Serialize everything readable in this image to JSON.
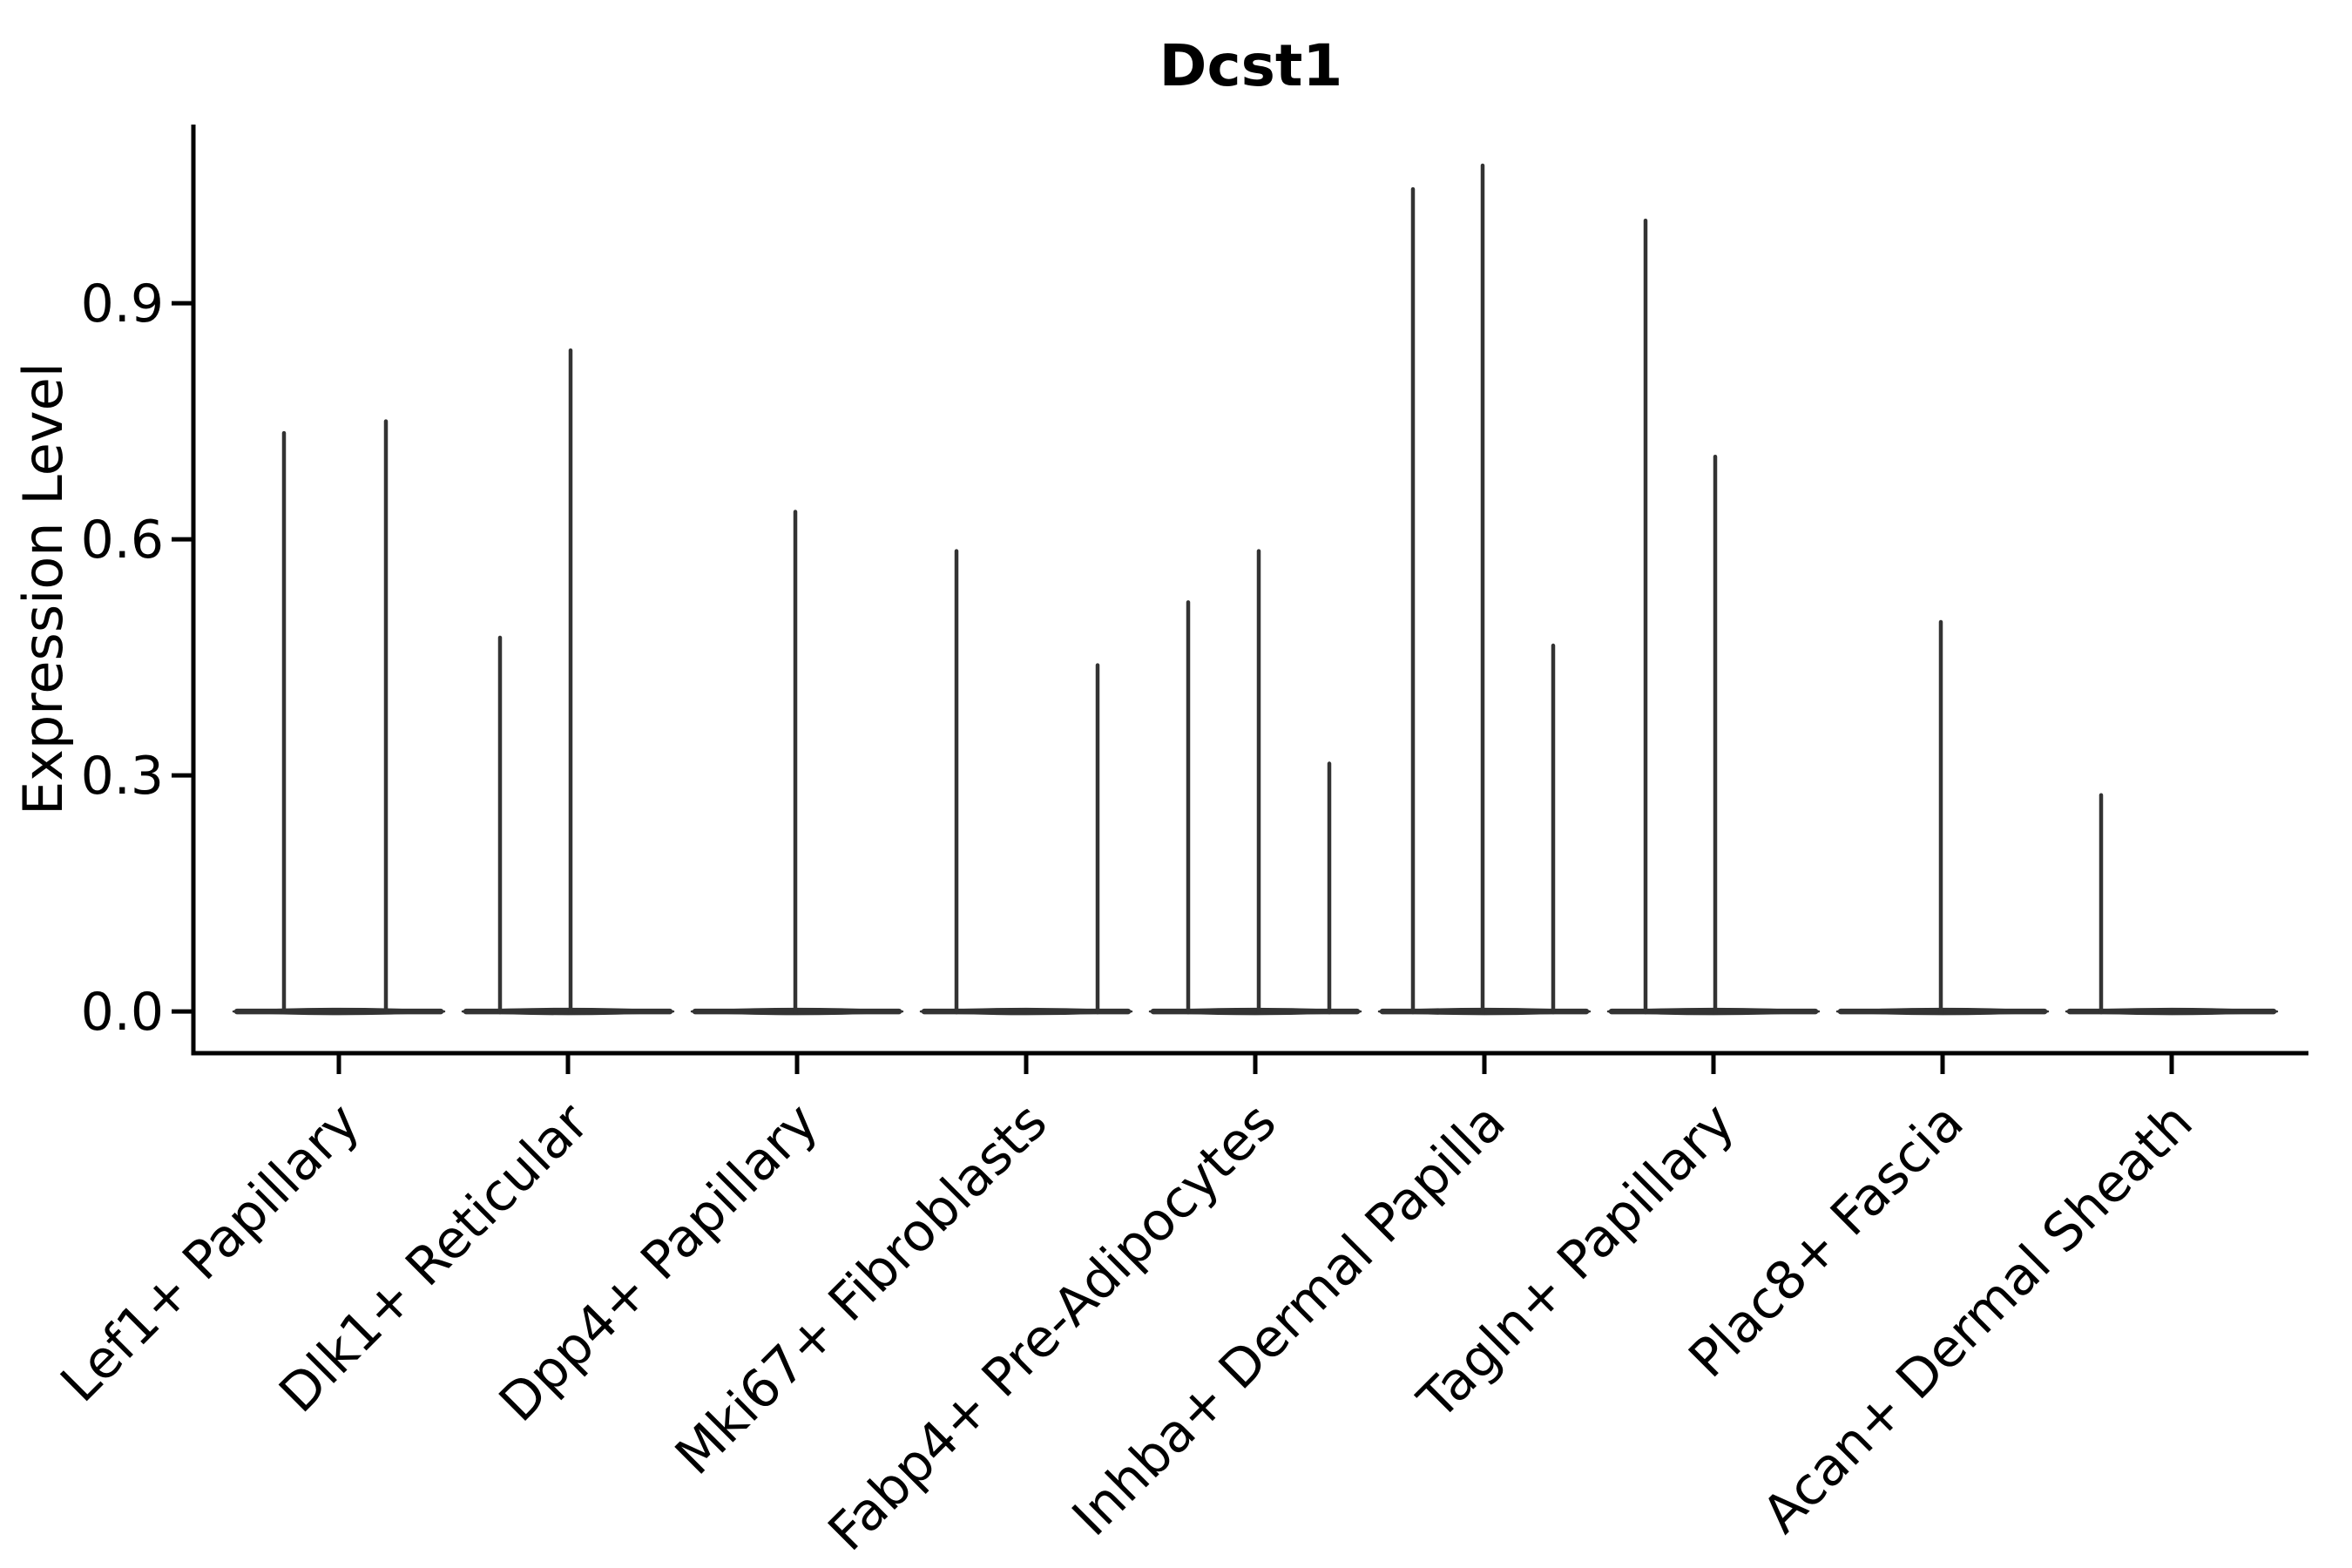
{
  "figure": {
    "title": "Dcst1",
    "ylabel": "Expression Level"
  },
  "chart_data": {
    "type": "violin",
    "title": "Dcst1",
    "xlabel": "",
    "ylabel": "Expression Level",
    "categories": [
      "Lef1+ Papillary",
      "Dlk1+ Reticular",
      "Dpp4+ Papillary",
      "Mki67+ Fibroblasts",
      "Fabp4+ Pre-Adipocytes",
      "Inhba+ Dermal Papilla",
      "Tagln+ Papillary",
      "Plac8+ Fascia",
      "Acan+ Dermal Sheath"
    ],
    "ytick_labels": [
      "0.0",
      "0.3",
      "0.6",
      "0.9"
    ],
    "ytick_values": [
      0.0,
      0.3,
      0.6,
      0.9
    ],
    "ylim": [
      -0.053,
      1.127
    ],
    "grid": false,
    "legend": "none",
    "background_color": "#ffffff",
    "violin_color": "#333333",
    "axis_color": "#000000",
    "series": [
      {
        "category": "Lef1+ Papillary",
        "baseline": 0.0,
        "spikes": [
          {
            "offset": -63,
            "value": 0.735
          },
          {
            "offset": 54,
            "value": 0.75
          }
        ]
      },
      {
        "category": "Dlk1+ Reticular",
        "baseline": 0.0,
        "spikes": [
          {
            "offset": -78,
            "value": 0.475
          },
          {
            "offset": 3,
            "value": 0.84
          }
        ]
      },
      {
        "category": "Dpp4+ Papillary",
        "baseline": 0.0,
        "spikes": [
          {
            "offset": -2,
            "value": 0.635
          }
        ]
      },
      {
        "category": "Mki67+ Fibroblasts",
        "baseline": 0.0,
        "spikes": [
          {
            "offset": -80,
            "value": 0.585
          },
          {
            "offset": 82,
            "value": 0.44
          }
        ]
      },
      {
        "category": "Fabp4+ Pre-Adipocytes",
        "baseline": 0.0,
        "spikes": [
          {
            "offset": -77,
            "value": 0.52
          },
          {
            "offset": 4,
            "value": 0.585
          },
          {
            "offset": 85,
            "value": 0.315
          }
        ]
      },
      {
        "category": "Inhba+ Dermal Papilla",
        "baseline": 0.0,
        "spikes": [
          {
            "offset": -82,
            "value": 1.045
          },
          {
            "offset": -2,
            "value": 1.075
          },
          {
            "offset": 79,
            "value": 0.465
          }
        ]
      },
      {
        "category": "Tagln+ Papillary",
        "baseline": 0.0,
        "spikes": [
          {
            "offset": -78,
            "value": 1.005
          },
          {
            "offset": 2,
            "value": 0.705
          }
        ]
      },
      {
        "category": "Plac8+ Fascia",
        "baseline": 0.0,
        "spikes": [
          {
            "offset": -2,
            "value": 0.495
          }
        ]
      },
      {
        "category": "Acan+ Dermal Sheath",
        "baseline": 0.0,
        "spikes": [
          {
            "offset": -81,
            "value": 0.275
          }
        ]
      }
    ]
  }
}
